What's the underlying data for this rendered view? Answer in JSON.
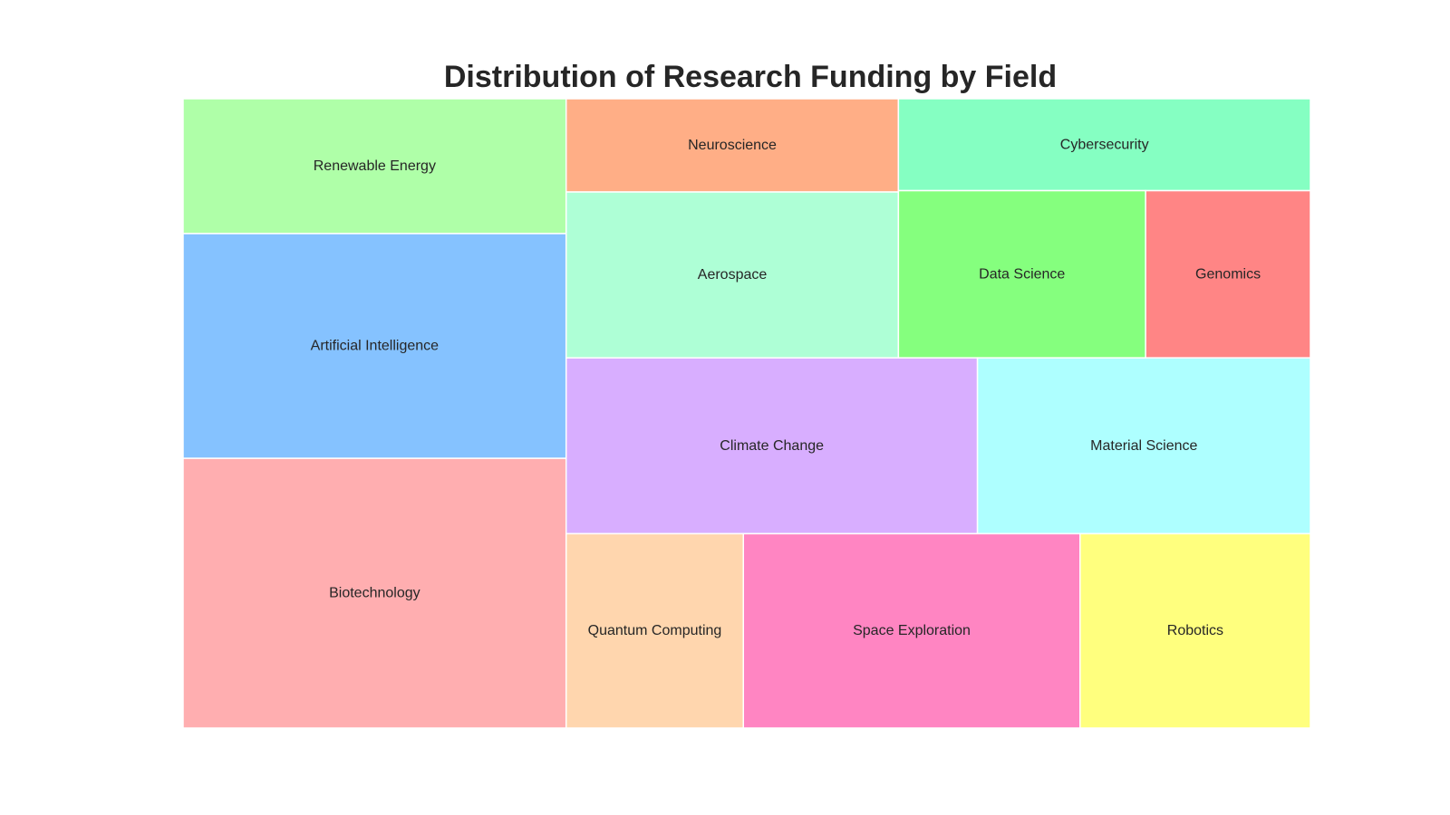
{
  "chart_data": {
    "type": "treemap",
    "title": "Distribution of Research Funding by Field",
    "items": [
      {
        "label": "Biotechnology",
        "value": 12.0,
        "color": "#FFAEB0"
      },
      {
        "label": "Artificial Intelligence",
        "value": 10.0,
        "color": "#85C2FF"
      },
      {
        "label": "Renewable Energy",
        "value": 6.0,
        "color": "#AFFFA8"
      },
      {
        "label": "Neuroscience",
        "value": 3.6,
        "color": "#FFAE86"
      },
      {
        "label": "Aerospace",
        "value": 6.4,
        "color": "#AEFFD6"
      },
      {
        "label": "Cybersecurity",
        "value": 4.4,
        "color": "#85FFC2"
      },
      {
        "label": "Data Science",
        "value": 4.8,
        "color": "#85FF7E"
      },
      {
        "label": "Genomics",
        "value": 3.2,
        "color": "#FF8585"
      },
      {
        "label": "Climate Change",
        "value": 8.4,
        "color": "#D8AEFF"
      },
      {
        "label": "Material Science",
        "value": 6.8,
        "color": "#AEFFFF"
      },
      {
        "label": "Quantum Computing",
        "value": 4.0,
        "color": "#FFD6AE"
      },
      {
        "label": "Space Exploration",
        "value": 7.6,
        "color": "#FF85C2"
      },
      {
        "label": "Robotics",
        "value": 5.2,
        "color": "#FFFF7E"
      }
    ]
  }
}
